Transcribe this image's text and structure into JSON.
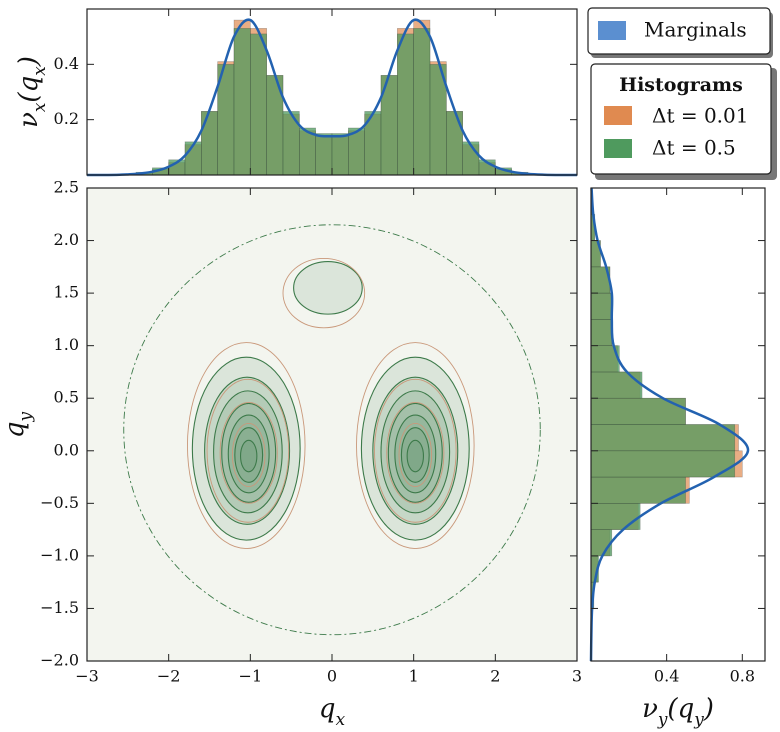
{
  "chart_data": [
    {
      "type": "histogram",
      "ylabel": "ν_x(q_x)",
      "bins": [
        -3,
        -2.8,
        -2.6,
        -2.4,
        -2.2,
        -2,
        -1.8,
        -1.6,
        -1.4,
        -1.2,
        -1,
        -0.8,
        -0.6,
        -0.4,
        -0.2,
        0,
        0.2,
        0.4,
        0.6,
        0.8,
        1,
        1.2,
        1.4,
        1.6,
        1.8,
        2,
        2.2,
        2.4,
        2.6,
        2.8,
        3
      ],
      "series": [
        {
          "name": "Δt = 0.01",
          "color": "#e08a50",
          "values": [
            0,
            0.001,
            0.002,
            0.007,
            0.02,
            0.045,
            0.11,
            0.23,
            0.41,
            0.56,
            0.53,
            0.36,
            0.22,
            0.16,
            0.14,
            0.14,
            0.16,
            0.22,
            0.36,
            0.53,
            0.56,
            0.41,
            0.23,
            0.11,
            0.045,
            0.02,
            0.007,
            0.002,
            0.001,
            0
          ]
        },
        {
          "name": "Δt = 0.5",
          "color": "#4f9a5e",
          "values": [
            0.001,
            0.002,
            0.004,
            0.01,
            0.026,
            0.055,
            0.12,
            0.23,
            0.4,
            0.53,
            0.51,
            0.36,
            0.23,
            0.17,
            0.15,
            0.15,
            0.17,
            0.23,
            0.36,
            0.51,
            0.53,
            0.4,
            0.23,
            0.12,
            0.055,
            0.026,
            0.01,
            0.004,
            0.002,
            0.001
          ]
        }
      ],
      "line": {
        "name": "Marginals",
        "color": "#2362b0",
        "x": [
          -3,
          -2.8,
          -2.6,
          -2.4,
          -2.2,
          -2,
          -1.8,
          -1.6,
          -1.4,
          -1.2,
          -1,
          -0.8,
          -0.6,
          -0.4,
          -0.2,
          0,
          0.2,
          0.4,
          0.6,
          0.8,
          1,
          1.2,
          1.4,
          1.6,
          1.8,
          2,
          2.2,
          2.4,
          2.6,
          2.8,
          3
        ],
        "values": [
          0,
          0,
          0.001,
          0.004,
          0.012,
          0.03,
          0.07,
          0.16,
          0.32,
          0.5,
          0.56,
          0.45,
          0.28,
          0.18,
          0.145,
          0.14,
          0.145,
          0.18,
          0.28,
          0.45,
          0.56,
          0.5,
          0.32,
          0.16,
          0.07,
          0.03,
          0.012,
          0.004,
          0.001,
          0,
          0
        ]
      },
      "legend_title": "Histograms",
      "xlim": [
        -3,
        3
      ],
      "ylim": [
        0,
        0.6
      ],
      "xticks": [
        -3,
        -2,
        -1,
        0,
        1,
        2,
        3
      ],
      "yticks": [
        0.2,
        0.4
      ]
    },
    {
      "type": "contour",
      "xlabel": "q_x",
      "ylabel": "q_y",
      "xlim": [
        -3,
        3
      ],
      "ylim": [
        -2,
        2.5
      ],
      "xticks": [
        {
          "value": -3,
          "label": "−3"
        },
        {
          "value": -2,
          "label": "−2"
        },
        {
          "value": -1,
          "label": "−1"
        },
        0,
        1,
        2,
        3
      ],
      "yticks": [
        {
          "value": -2,
          "label": "−2.0"
        },
        {
          "value": -1.5,
          "label": "−1.5"
        },
        {
          "value": -1,
          "label": "−1.0"
        },
        {
          "value": -0.5,
          "label": "−0.5"
        },
        {
          "value": 0,
          "label": "0.0"
        },
        0.5,
        {
          "value": 1,
          "label": "1.0"
        },
        1.5,
        {
          "value": 2,
          "label": "2.0"
        },
        2.5
      ],
      "series": [
        {
          "color": "#3d7a4a",
          "filled": true,
          "ellipses": [
            [
              -1.05,
              0.02,
              0.66,
              0.87
            ],
            [
              -1.04,
              0.0,
              0.52,
              0.7
            ],
            [
              -1.03,
              -0.01,
              0.42,
              0.58
            ],
            [
              -1.02,
              -0.02,
              0.33,
              0.47
            ],
            [
              -1.02,
              -0.03,
              0.25,
              0.37
            ],
            [
              -1.02,
              -0.04,
              0.17,
              0.26
            ],
            [
              -1.02,
              -0.05,
              0.1,
              0.15
            ],
            [
              1.02,
              0.02,
              0.66,
              0.87
            ],
            [
              1.02,
              0.0,
              0.52,
              0.7
            ],
            [
              1.02,
              -0.01,
              0.42,
              0.58
            ],
            [
              1.02,
              -0.02,
              0.33,
              0.47
            ],
            [
              1.02,
              -0.03,
              0.25,
              0.37
            ],
            [
              1.02,
              -0.04,
              0.17,
              0.26
            ],
            [
              1.02,
              -0.05,
              0.1,
              0.15
            ],
            [
              -0.05,
              1.55,
              0.42,
              0.25
            ]
          ]
        },
        {
          "color": "#c9987a",
          "filled": false,
          "ellipses": [
            [
              -1.05,
              0.05,
              0.72,
              0.98
            ],
            [
              -1.03,
              0.0,
              0.5,
              0.68
            ],
            [
              -1.02,
              -0.02,
              0.35,
              0.48
            ],
            [
              -1.02,
              -0.04,
              0.2,
              0.3
            ],
            [
              1.02,
              0.05,
              0.72,
              0.98
            ],
            [
              1.02,
              0.0,
              0.5,
              0.68
            ],
            [
              1.02,
              -0.02,
              0.35,
              0.48
            ],
            [
              1.02,
              -0.04,
              0.2,
              0.3
            ],
            [
              -0.1,
              1.5,
              0.5,
              0.33
            ]
          ]
        },
        {
          "color": "#3d7a4a",
          "filled": false,
          "ellipses": [
            [
              0,
              0.2,
              2.55,
              1.95
            ]
          ]
        }
      ]
    },
    {
      "type": "histogram_h",
      "xlabel": "ν_y(q_y)",
      "bins": [
        -2,
        -1.75,
        -1.5,
        -1.25,
        -1,
        -0.75,
        -0.5,
        -0.25,
        0,
        0.25,
        0.5,
        0.75,
        1,
        1.25,
        1.5,
        1.75,
        2,
        2.25,
        2.5
      ],
      "series": [
        {
          "color": "#e08a50",
          "values": [
            0.001,
            0.004,
            0.013,
            0.035,
            0.1,
            0.25,
            0.52,
            0.8,
            0.78,
            0.5,
            0.26,
            0.14,
            0.11,
            0.11,
            0.1,
            0.05,
            0.018,
            0.004
          ]
        },
        {
          "color": "#4f9a5e",
          "values": [
            0.002,
            0.005,
            0.015,
            0.04,
            0.11,
            0.26,
            0.5,
            0.76,
            0.76,
            0.5,
            0.27,
            0.15,
            0.11,
            0.11,
            0.1,
            0.05,
            0.02,
            0.005
          ]
        }
      ],
      "line": {
        "color": "#2362b0",
        "y": [
          -2,
          -1.75,
          -1.5,
          -1.25,
          -1,
          -0.75,
          -0.5,
          -0.25,
          0,
          0.25,
          0.5,
          0.75,
          1,
          1.25,
          1.5,
          1.75,
          2,
          2.25,
          2.5
        ],
        "values": [
          0,
          0.002,
          0.006,
          0.02,
          0.06,
          0.17,
          0.37,
          0.65,
          0.83,
          0.68,
          0.38,
          0.19,
          0.12,
          0.11,
          0.11,
          0.08,
          0.035,
          0.012,
          0.003
        ]
      },
      "xlim": [
        0,
        0.92
      ],
      "xticks": [
        0.4,
        0.8
      ],
      "ylim": [
        -2,
        2.5
      ],
      "yticks": [
        -2,
        -1.5,
        -1,
        -0.5,
        0,
        0.5,
        1,
        1.5,
        2,
        2.5
      ]
    }
  ]
}
